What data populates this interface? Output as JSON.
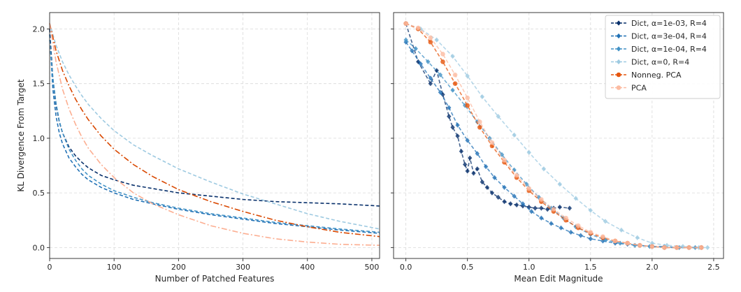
{
  "chart_data": [
    {
      "type": "line",
      "xlabel": "Number of Patched Features",
      "ylabel": "KL Divergence From Target",
      "xlim": [
        0,
        512
      ],
      "ylim": [
        -0.1,
        2.15
      ],
      "xticks": [
        0,
        100,
        200,
        300,
        400,
        500
      ],
      "yticks": [
        0.0,
        0.5,
        1.0,
        1.5,
        2.0
      ],
      "xtick_labels": [
        "0",
        "100",
        "200",
        "300",
        "400",
        "500"
      ],
      "ytick_labels": [
        "0.0",
        "0.5",
        "1.0",
        "1.5",
        "2.0"
      ],
      "grid": true,
      "series": [
        {
          "name": "Dict, α=1e-03, R=4",
          "color": "#08306b",
          "dash": "dashed",
          "x": [
            0,
            5,
            10,
            15,
            20,
            30,
            40,
            50,
            60,
            80,
            100,
            130,
            160,
            200,
            250,
            300,
            350,
            400,
            450,
            512
          ],
          "y": [
            2.0,
            1.55,
            1.3,
            1.15,
            1.05,
            0.92,
            0.84,
            0.78,
            0.73,
            0.66,
            0.62,
            0.57,
            0.54,
            0.5,
            0.47,
            0.44,
            0.42,
            0.41,
            0.4,
            0.38
          ]
        },
        {
          "name": "Dict, α=3e-04, R=4",
          "color": "#2171b5",
          "dash": "dashed",
          "x": [
            0,
            5,
            10,
            15,
            20,
            30,
            40,
            50,
            60,
            80,
            100,
            130,
            160,
            200,
            250,
            300,
            350,
            400,
            450,
            512
          ],
          "y": [
            1.95,
            1.45,
            1.2,
            1.05,
            0.95,
            0.82,
            0.74,
            0.67,
            0.62,
            0.55,
            0.5,
            0.44,
            0.4,
            0.35,
            0.3,
            0.26,
            0.22,
            0.19,
            0.16,
            0.13
          ]
        },
        {
          "name": "Dict, α=1e-04, R=4",
          "color": "#4292c6",
          "dash": "dashed",
          "x": [
            0,
            5,
            10,
            15,
            20,
            30,
            40,
            50,
            60,
            80,
            100,
            130,
            160,
            200,
            250,
            300,
            350,
            400,
            450,
            512
          ],
          "y": [
            1.9,
            1.55,
            1.32,
            1.16,
            1.05,
            0.9,
            0.8,
            0.72,
            0.66,
            0.58,
            0.52,
            0.46,
            0.41,
            0.36,
            0.31,
            0.27,
            0.23,
            0.2,
            0.17,
            0.14
          ]
        },
        {
          "name": "Dict, α=0, R=4",
          "color": "#9ecae1",
          "dash": "dashed",
          "x": [
            0,
            10,
            20,
            30,
            40,
            50,
            60,
            80,
            100,
            130,
            160,
            200,
            250,
            300,
            350,
            400,
            450,
            512
          ],
          "y": [
            2.05,
            1.85,
            1.7,
            1.58,
            1.48,
            1.39,
            1.31,
            1.18,
            1.07,
            0.94,
            0.84,
            0.72,
            0.6,
            0.49,
            0.4,
            0.31,
            0.24,
            0.17
          ]
        },
        {
          "name": "Nonneg. PCA",
          "color": "#d94801",
          "dash": "dashdot",
          "x": [
            0,
            10,
            20,
            30,
            40,
            50,
            60,
            80,
            100,
            130,
            160,
            200,
            250,
            300,
            350,
            400,
            450,
            512
          ],
          "y": [
            2.05,
            1.8,
            1.62,
            1.48,
            1.36,
            1.26,
            1.17,
            1.02,
            0.9,
            0.76,
            0.65,
            0.53,
            0.42,
            0.33,
            0.25,
            0.19,
            0.14,
            0.1
          ]
        },
        {
          "name": "PCA",
          "color": "#fcae91",
          "dash": "dashdot",
          "x": [
            0,
            10,
            20,
            30,
            40,
            50,
            60,
            80,
            100,
            130,
            160,
            200,
            250,
            300,
            350,
            400,
            450,
            512
          ],
          "y": [
            2.05,
            1.7,
            1.45,
            1.27,
            1.13,
            1.01,
            0.91,
            0.76,
            0.64,
            0.5,
            0.4,
            0.3,
            0.2,
            0.13,
            0.08,
            0.05,
            0.03,
            0.02
          ]
        }
      ]
    },
    {
      "type": "scatter",
      "xlabel": "Mean Edit Magnitude",
      "xlim": [
        -0.1,
        2.58
      ],
      "ylim": [
        -0.1,
        2.15
      ],
      "xticks": [
        0.0,
        0.5,
        1.0,
        1.5,
        2.0,
        2.5
      ],
      "yticks": [
        0.0,
        0.5,
        1.0,
        1.5,
        2.0
      ],
      "xtick_labels": [
        "0.0",
        "0.5",
        "1.0",
        "1.5",
        "2.0",
        "2.5"
      ],
      "grid": true,
      "legend": "top-right",
      "series": [
        {
          "name": "Dict, α=1e-03, R=4",
          "color": "#08306b",
          "marker": "diamond",
          "x": [
            0.0,
            0.1,
            0.2,
            0.25,
            0.3,
            0.35,
            0.38,
            0.42,
            0.45,
            0.48,
            0.5,
            0.52,
            0.55,
            0.58,
            0.62,
            0.66,
            0.7,
            0.75,
            0.8,
            0.85,
            0.9,
            0.95,
            1.0,
            1.05,
            1.1,
            1.15,
            1.2,
            1.25,
            1.33
          ],
          "y": [
            2.05,
            1.7,
            1.5,
            1.62,
            1.4,
            1.2,
            1.1,
            1.02,
            0.88,
            0.76,
            0.7,
            0.82,
            0.68,
            0.72,
            0.6,
            0.55,
            0.5,
            0.46,
            0.42,
            0.4,
            0.39,
            0.38,
            0.37,
            0.36,
            0.36,
            0.35,
            0.36,
            0.37,
            0.36
          ]
        },
        {
          "name": "Dict, α=3e-04, R=4",
          "color": "#2171b5",
          "marker": "diamond",
          "x": [
            0.0,
            0.05,
            0.12,
            0.2,
            0.28,
            0.35,
            0.42,
            0.5,
            0.58,
            0.65,
            0.72,
            0.8,
            0.88,
            0.95,
            1.02,
            1.1,
            1.18,
            1.26,
            1.34,
            1.42,
            1.5,
            1.6,
            1.7,
            1.8,
            1.9,
            2.0,
            2.1,
            2.2,
            2.3,
            2.4
          ],
          "y": [
            1.88,
            1.8,
            1.68,
            1.55,
            1.42,
            1.28,
            1.12,
            0.98,
            0.86,
            0.74,
            0.64,
            0.55,
            0.47,
            0.4,
            0.33,
            0.27,
            0.22,
            0.18,
            0.14,
            0.11,
            0.08,
            0.06,
            0.04,
            0.03,
            0.02,
            0.01,
            0.01,
            0.0,
            0.0,
            0.0
          ]
        },
        {
          "name": "Dict, α=1e-04, R=4",
          "color": "#4292c6",
          "marker": "diamond",
          "x": [
            0.0,
            0.08,
            0.18,
            0.28,
            0.38,
            0.48,
            0.58,
            0.68,
            0.78,
            0.88,
            0.98,
            1.08,
            1.18,
            1.28,
            1.38,
            1.5,
            1.62,
            1.74,
            1.86,
            1.98,
            2.1,
            2.22,
            2.35
          ],
          "y": [
            1.9,
            1.82,
            1.7,
            1.58,
            1.44,
            1.3,
            1.15,
            1.0,
            0.85,
            0.71,
            0.58,
            0.46,
            0.36,
            0.27,
            0.19,
            0.12,
            0.07,
            0.04,
            0.02,
            0.01,
            0.0,
            0.0,
            0.0
          ]
        },
        {
          "name": "Dict, α=0, R=4",
          "color": "#9ecae1",
          "marker": "diamond",
          "x": [
            0.0,
            0.12,
            0.25,
            0.38,
            0.5,
            0.62,
            0.75,
            0.88,
            1.0,
            1.12,
            1.25,
            1.38,
            1.5,
            1.62,
            1.75,
            1.88,
            2.0,
            2.12,
            2.25,
            2.38,
            2.45
          ],
          "y": [
            2.05,
            2.0,
            1.9,
            1.75,
            1.57,
            1.38,
            1.2,
            1.03,
            0.87,
            0.72,
            0.58,
            0.45,
            0.34,
            0.24,
            0.16,
            0.09,
            0.04,
            0.02,
            0.01,
            0.0,
            0.0
          ]
        },
        {
          "name": "Nonneg. PCA",
          "color": "#e6550d",
          "marker": "circle",
          "x": [
            0.0,
            0.1,
            0.2,
            0.3,
            0.4,
            0.5,
            0.6,
            0.7,
            0.8,
            0.9,
            1.0,
            1.1,
            1.2,
            1.3,
            1.4,
            1.5,
            1.6,
            1.7,
            1.8,
            1.9,
            2.0,
            2.1,
            2.2,
            2.3,
            2.4
          ],
          "y": [
            2.05,
            2.0,
            1.88,
            1.7,
            1.5,
            1.3,
            1.1,
            0.93,
            0.78,
            0.64,
            0.52,
            0.42,
            0.33,
            0.25,
            0.18,
            0.13,
            0.09,
            0.06,
            0.04,
            0.02,
            0.01,
            0.0,
            0.0,
            0.0,
            0.0
          ]
        },
        {
          "name": "PCA",
          "color": "#fcbba1",
          "marker": "circle",
          "x": [
            0.0,
            0.1,
            0.2,
            0.3,
            0.4,
            0.5,
            0.6,
            0.7,
            0.8,
            0.9,
            1.0,
            1.1,
            1.2,
            1.3,
            1.4,
            1.5,
            1.6,
            1.7,
            1.8,
            1.9,
            2.0,
            2.1,
            2.2,
            2.3,
            2.4
          ],
          "y": [
            2.05,
            2.01,
            1.92,
            1.77,
            1.58,
            1.37,
            1.15,
            0.96,
            0.8,
            0.66,
            0.54,
            0.44,
            0.35,
            0.27,
            0.2,
            0.14,
            0.1,
            0.06,
            0.04,
            0.02,
            0.01,
            0.0,
            0.0,
            0.0,
            0.0
          ]
        }
      ]
    }
  ]
}
